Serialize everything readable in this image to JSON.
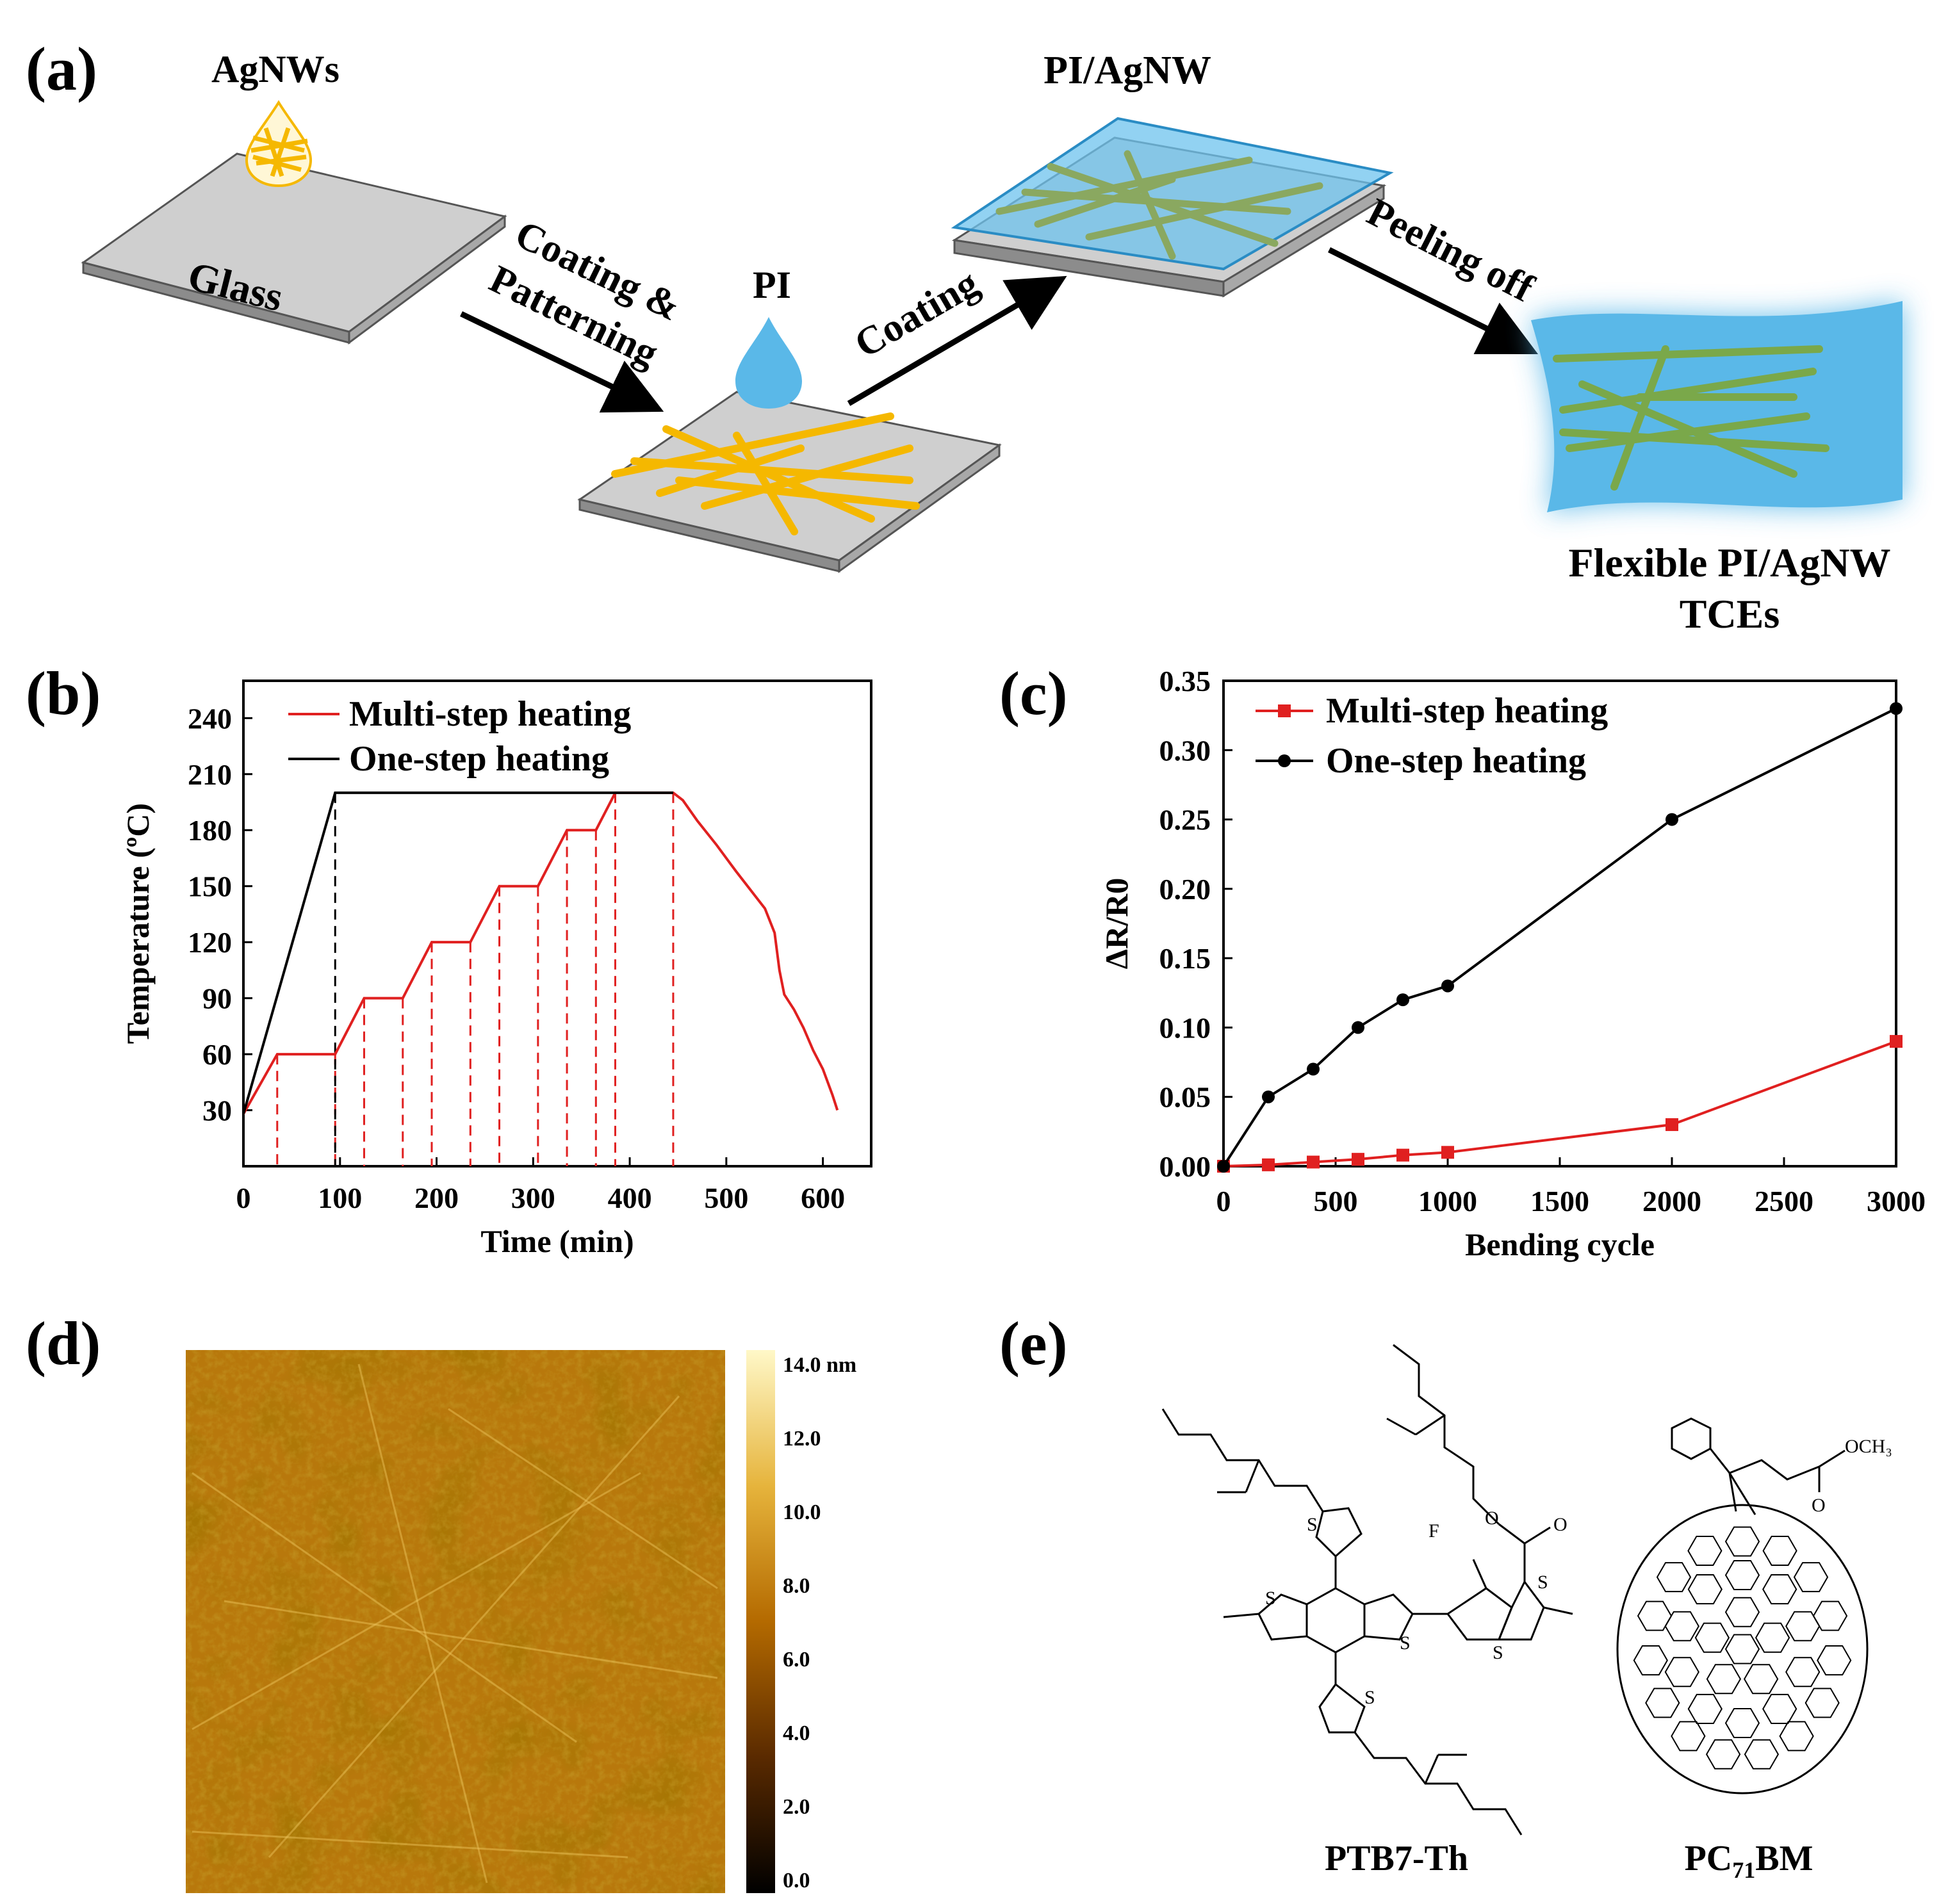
{
  "panel_labels": [
    "(a)",
    "(b)",
    "(c)",
    "(d)",
    "(e)"
  ],
  "schematic": {
    "agnws_label": "AgNWs",
    "glass_label": "Glass",
    "step1_line1": "Coating &",
    "step1_line2": "Patterning",
    "pi_label": "PI",
    "step2_label": "Coating",
    "pi_agnw_label": "PI/AgNW",
    "step3_label": "Peeling off",
    "final_line1": "Flexible PI/AgNW",
    "final_line2": "TCEs",
    "colors": {
      "glass": "#c8c8c8",
      "agnw": "#f5b800",
      "pi": "#5ab8e8",
      "pi_nw": "#7aa84a"
    }
  },
  "chart_data": [
    {
      "type": "line",
      "title": "",
      "xlabel": "Time (min)",
      "ylabel": "Temperature (ºC)",
      "xlim": [
        0,
        650
      ],
      "ylim": [
        0,
        260
      ],
      "xticks": [
        0,
        100,
        200,
        300,
        400,
        500,
        600
      ],
      "yticks": [
        30,
        60,
        90,
        120,
        150,
        180,
        210,
        240
      ],
      "series": [
        {
          "name": "Multi-step heating",
          "color": "#e02020",
          "x": [
            0,
            35,
            95,
            125,
            165,
            195,
            235,
            265,
            305,
            335,
            365,
            385,
            445,
            455,
            470,
            490,
            510,
            525,
            540,
            550,
            555,
            560,
            570,
            580,
            590,
            600,
            610,
            615
          ],
          "y": [
            28,
            60,
            60,
            90,
            90,
            120,
            120,
            150,
            150,
            180,
            180,
            200,
            200,
            196,
            185,
            172,
            158,
            148,
            138,
            125,
            105,
            92,
            84,
            74,
            62,
            52,
            38,
            30
          ]
        },
        {
          "name": "One-step heating",
          "color": "#000000",
          "x": [
            0,
            95,
            445
          ],
          "y": [
            28,
            200,
            200
          ]
        }
      ],
      "dashed_markers": {
        "red": [
          35,
          95,
          125,
          165,
          195,
          235,
          265,
          305,
          335,
          365,
          385,
          445
        ],
        "black": [
          95
        ]
      }
    },
    {
      "type": "line",
      "title": "",
      "xlabel": "Bending cycle",
      "ylabel": "ΔR/R0",
      "xlim": [
        0,
        3000
      ],
      "ylim": [
        0,
        0.35
      ],
      "xticks": [
        0,
        500,
        1000,
        1500,
        2000,
        2500,
        3000
      ],
      "yticks": [
        "0.00",
        "0.05",
        "0.10",
        "0.15",
        "0.20",
        "0.25",
        "0.30",
        "0.35"
      ],
      "series": [
        {
          "name": "Multi-step heating",
          "color": "#e02020",
          "marker": "square",
          "x": [
            0,
            200,
            400,
            600,
            800,
            1000,
            2000,
            3000
          ],
          "y": [
            0.0,
            0.001,
            0.003,
            0.005,
            0.008,
            0.01,
            0.03,
            0.09
          ]
        },
        {
          "name": "One-step heating",
          "color": "#000000",
          "marker": "circle",
          "x": [
            0,
            200,
            400,
            600,
            800,
            1000,
            2000,
            3000
          ],
          "y": [
            0.0,
            0.05,
            0.07,
            0.1,
            0.12,
            0.13,
            0.25,
            0.33
          ]
        }
      ]
    }
  ],
  "afm": {
    "colorbar_ticks": [
      "14.0 nm",
      "12.0",
      "10.0",
      "8.0",
      "6.0",
      "4.0",
      "2.0",
      "0.0"
    ]
  },
  "molecules": {
    "ptb7_name": "PTB7-Th",
    "pcbm_name_prefix": "PC",
    "pcbm_subscript": "71",
    "pcbm_name_suffix": "BM",
    "atoms": {
      "sulfur": "S",
      "fluorine": "F",
      "oxygen": "O",
      "methoxy": "OCH₃"
    }
  }
}
